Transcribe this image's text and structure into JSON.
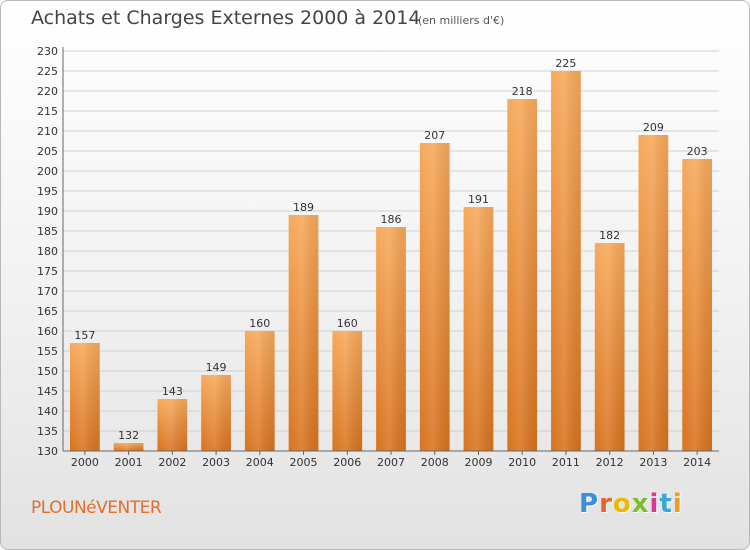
{
  "header": {
    "title": "Achats et Charges Externes 2000 à 2014",
    "subtitle": "(en milliers d'€)"
  },
  "footer": {
    "place": "PLOUNéVENTER",
    "logo": "Proxiti",
    "logo_colors": [
      "#3a8fd8",
      "#e8602c",
      "#f2b500",
      "#7bbf2a",
      "#d43c8f",
      "#39a7d6",
      "#f09a1f"
    ]
  },
  "colors": {
    "bar_top": "#f7a95b",
    "bar_bottom": "#d8731e",
    "grid": "#d0d0d0",
    "axis": "#666666"
  },
  "chart_data": {
    "type": "bar",
    "title": "Achats et Charges Externes 2000 à 2014",
    "subtitle": "(en milliers d'€)",
    "xlabel": "",
    "ylabel": "",
    "categories": [
      "2000",
      "2001",
      "2002",
      "2003",
      "2004",
      "2005",
      "2006",
      "2007",
      "2008",
      "2009",
      "2010",
      "2011",
      "2012",
      "2013",
      "2014"
    ],
    "values": [
      157,
      132,
      143,
      149,
      160,
      189,
      160,
      186,
      207,
      191,
      218,
      225,
      182,
      209,
      203
    ],
    "ylim": [
      130,
      230
    ],
    "ytick_step": 5,
    "grid": true,
    "data_labels": true
  }
}
